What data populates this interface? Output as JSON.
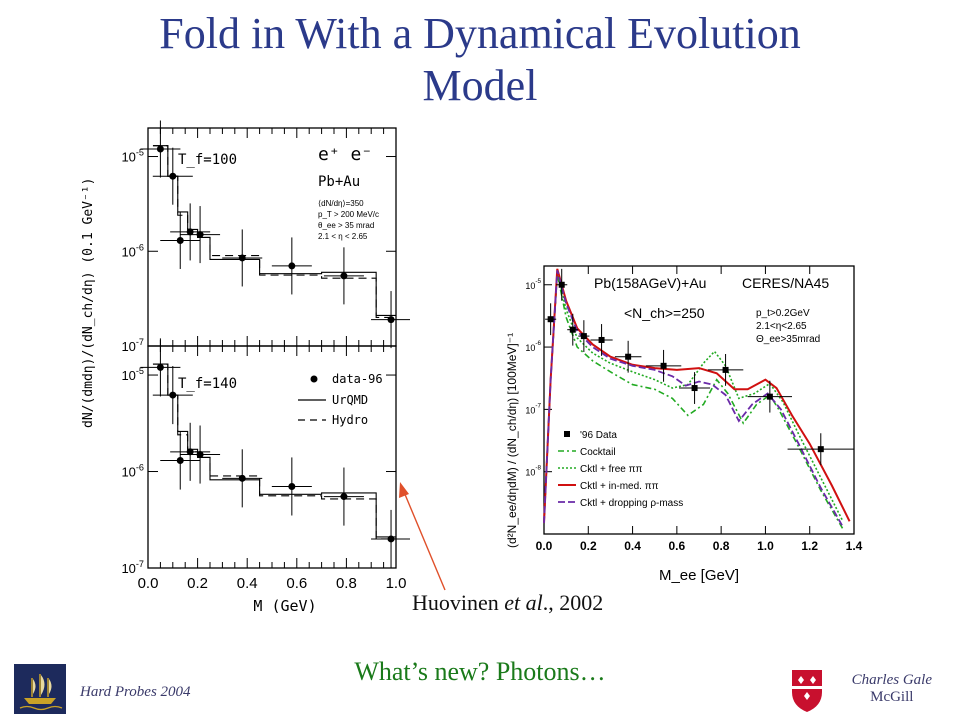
{
  "slide": {
    "title_line1": "Fold in With a Dynamical Evolution",
    "title_line2": "Model",
    "caption_name": "Huovinen ",
    "caption_etal": "et al",
    "caption_year": "., 2002",
    "question": "What’s new? Photons…",
    "footer_left": "Hard Probes 2004",
    "footer_right_name": "Charles Gale",
    "footer_right_inst": "McGill"
  },
  "colors": {
    "title": "#2b3a8a",
    "question": "#1a7a1a",
    "arrow": "#e0502a",
    "red": "#d01010",
    "green": "#22aa22",
    "purple": "#6a2aa8"
  },
  "chart_data": [
    {
      "type": "scatter",
      "panel": "left-top",
      "ylabel": "dN/(dmdη)/(dN_ch/dη) (0.1 GeV⁻¹)",
      "log_y": true,
      "ylim": [
        1e-07,
        2e-05
      ],
      "xlim": [
        0,
        1.0
      ],
      "yticks": [
        "10^-5",
        "10^-6",
        "10^-7"
      ],
      "labels": {
        "tf": "T_f=100",
        "pair": "e⁺ e⁻",
        "system": "Pb+Au",
        "c1": "⟨dN/dη⟩=350",
        "c2": "p_T > 200 MeV/c",
        "c3": "θ_ee > 35 mrad",
        "c4": "2.1 < η < 2.65"
      },
      "data": {
        "x": [
          0.05,
          0.1,
          0.13,
          0.17,
          0.21,
          0.38,
          0.58,
          0.79,
          0.98
        ],
        "y": [
          1.2e-05,
          6.2e-06,
          1.3e-06,
          1.6e-06,
          1.5e-06,
          8.5e-07,
          7e-07,
          5.5e-07,
          1.9e-07
        ]
      }
    },
    {
      "type": "scatter",
      "panel": "left-bottom",
      "xlabel": "M (GeV)",
      "log_y": true,
      "ylim": [
        1e-07,
        2e-05
      ],
      "xlim": [
        0,
        1.0
      ],
      "xticks": [
        "0.0",
        "0.2",
        "0.4",
        "0.6",
        "0.8",
        "1.0"
      ],
      "yticks": [
        "10^-5",
        "10^-6",
        "10^-7"
      ],
      "labels": {
        "tf": "T_f=140"
      },
      "legend": [
        "data-96",
        "UrQMD",
        "Hydro"
      ],
      "data": {
        "x": [
          0.05,
          0.1,
          0.13,
          0.17,
          0.21,
          0.38,
          0.58,
          0.79,
          0.98
        ],
        "y": [
          1.2e-05,
          6.2e-06,
          1.3e-06,
          1.6e-06,
          1.5e-06,
          8.5e-07,
          7e-07,
          5.5e-07,
          2e-07
        ]
      }
    },
    {
      "type": "line",
      "panel": "right",
      "title": "Pb(158AGeV)+Au",
      "title_right": "CERES/NA45",
      "nch": "<N_ch>=250",
      "cuts": [
        "p_t>0.2GeV",
        "2.1<η<2.65",
        "Θ_ee>35mrad"
      ],
      "xlabel": "M_ee [GeV]",
      "ylabel": "(d²N_ee/dηdM) / (dN_ch/dη) [100MeV]⁻¹",
      "log_y": true,
      "xlim": [
        0,
        1.4
      ],
      "ylim": [
        1e-09,
        2e-05
      ],
      "xticks": [
        "0.0",
        "0.2",
        "0.4",
        "0.6",
        "0.8",
        "1.0",
        "1.2",
        "1.4"
      ],
      "yticks": [
        "10^-5",
        "10^-6",
        "10^-7",
        "10^-8"
      ],
      "legend": [
        "'96 Data",
        "Cocktail",
        "Cktl + free ππ",
        "Cktl + in-med. ππ",
        "Cktl + dropping ρ-mass"
      ],
      "data": {
        "x": [
          0.03,
          0.08,
          0.13,
          0.18,
          0.26,
          0.38,
          0.54,
          0.68,
          0.82,
          1.02,
          1.25
        ],
        "y": [
          2.8e-06,
          1e-05,
          1.9e-06,
          1.5e-06,
          1.3e-06,
          7e-07,
          5e-07,
          2.2e-07,
          4.3e-07,
          1.6e-07,
          2.3e-08
        ]
      }
    }
  ]
}
